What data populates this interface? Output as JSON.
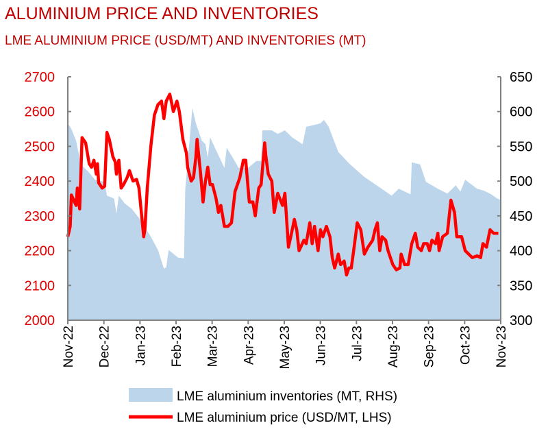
{
  "chart_data": {
    "type": "line+area",
    "title": "ALUMINIUM PRICE AND INVENTORIES",
    "subtitle": "LME ALUMINIUM PRICE (USD/MT) AND INVENTORIES (MT)",
    "x_range": [
      "2022-11-01",
      "2023-11-01"
    ],
    "x_tick_labels": [
      "Nov-22",
      "Dec-22",
      "Jan-23",
      "Feb-23",
      "Mar-23",
      "Apr-23",
      "May-23",
      "Jun-23",
      "Jul-23",
      "Aug-23",
      "Sep-23",
      "Oct-23",
      "Nov-23"
    ],
    "y_left": {
      "range": [
        2000,
        2700
      ],
      "ticks": [
        2000,
        2100,
        2200,
        2300,
        2400,
        2500,
        2600,
        2700
      ],
      "color": "#e00000"
    },
    "y_right": {
      "range": [
        300,
        650
      ],
      "ticks": [
        300,
        350,
        400,
        450,
        500,
        550,
        600,
        650
      ]
    },
    "grid": false,
    "legend_position": "bottom",
    "series": [
      {
        "name": "LME aluminium inventories (MT, RHS)",
        "type": "area",
        "axis": "right",
        "color": "#bdd5ea",
        "points": [
          [
            "2022-11-01",
            583
          ],
          [
            "2022-11-04",
            575
          ],
          [
            "2022-11-08",
            558
          ],
          [
            "2022-11-12",
            524
          ],
          [
            "2022-11-18",
            514
          ],
          [
            "2022-11-24",
            502
          ],
          [
            "2022-12-02",
            499
          ],
          [
            "2022-12-04",
            479
          ],
          [
            "2022-12-10",
            475
          ],
          [
            "2022-12-12",
            453
          ],
          [
            "2022-12-14",
            479
          ],
          [
            "2022-12-19",
            468
          ],
          [
            "2022-12-25",
            460
          ],
          [
            "2022-12-31",
            447
          ],
          [
            "2023-01-10",
            420
          ],
          [
            "2023-01-16",
            401
          ],
          [
            "2023-01-21",
            374
          ],
          [
            "2023-01-23",
            376
          ],
          [
            "2023-01-25",
            401
          ],
          [
            "2023-02-02",
            390
          ],
          [
            "2023-02-07",
            389
          ],
          [
            "2023-02-08",
            487
          ],
          [
            "2023-02-14",
            605
          ],
          [
            "2023-02-17",
            583
          ],
          [
            "2023-02-22",
            558
          ],
          [
            "2023-02-25",
            553
          ],
          [
            "2023-02-27",
            534
          ],
          [
            "2023-03-01",
            563
          ],
          [
            "2023-03-05",
            548
          ],
          [
            "2023-03-09",
            534
          ],
          [
            "2023-03-13",
            519
          ],
          [
            "2023-03-15",
            548
          ],
          [
            "2023-03-20",
            534
          ],
          [
            "2023-03-25",
            519
          ],
          [
            "2023-04-02",
            519
          ],
          [
            "2023-04-09",
            529
          ],
          [
            "2023-04-13",
            529
          ],
          [
            "2023-04-14",
            573
          ],
          [
            "2023-04-22",
            573
          ],
          [
            "2023-04-27",
            568
          ],
          [
            "2023-05-03",
            573
          ],
          [
            "2023-05-09",
            563
          ],
          [
            "2023-05-18",
            553
          ],
          [
            "2023-05-21",
            578
          ],
          [
            "2023-06-02",
            583
          ],
          [
            "2023-06-05",
            588
          ],
          [
            "2023-06-09",
            578
          ],
          [
            "2023-06-17",
            542
          ],
          [
            "2023-06-27",
            524
          ],
          [
            "2023-07-09",
            506
          ],
          [
            "2023-07-21",
            492
          ],
          [
            "2023-08-01",
            479
          ],
          [
            "2023-08-07",
            489
          ],
          [
            "2023-08-17",
            481
          ],
          [
            "2023-08-18",
            527
          ],
          [
            "2023-08-25",
            524
          ],
          [
            "2023-08-30",
            499
          ],
          [
            "2023-09-09",
            489
          ],
          [
            "2023-09-17",
            482
          ],
          [
            "2023-09-20",
            487
          ],
          [
            "2023-09-24",
            494
          ],
          [
            "2023-09-28",
            485
          ],
          [
            "2023-10-02",
            502
          ],
          [
            "2023-10-12",
            489
          ],
          [
            "2023-10-18",
            486
          ],
          [
            "2023-10-24",
            481
          ],
          [
            "2023-10-29",
            475
          ],
          [
            "2023-11-01",
            473
          ]
        ]
      },
      {
        "name": "LME aluminium price (USD/MT, LHS)",
        "type": "line",
        "axis": "left",
        "color": "#ff0000",
        "points": [
          [
            "2022-11-01",
            2240
          ],
          [
            "2022-11-03",
            2270
          ],
          [
            "2022-11-04",
            2360
          ],
          [
            "2022-11-08",
            2330
          ],
          [
            "2022-11-09",
            2380
          ],
          [
            "2022-11-11",
            2320
          ],
          [
            "2022-11-13",
            2525
          ],
          [
            "2022-11-16",
            2510
          ],
          [
            "2022-11-19",
            2450
          ],
          [
            "2022-11-21",
            2440
          ],
          [
            "2022-11-23",
            2460
          ],
          [
            "2022-11-25",
            2420
          ],
          [
            "2022-11-26",
            2450
          ],
          [
            "2022-11-27",
            2395
          ],
          [
            "2022-11-30",
            2380
          ],
          [
            "2022-12-02",
            2385
          ],
          [
            "2022-12-03",
            2460
          ],
          [
            "2022-12-04",
            2540
          ],
          [
            "2022-12-06",
            2520
          ],
          [
            "2022-12-09",
            2470
          ],
          [
            "2022-12-11",
            2455
          ],
          [
            "2022-12-12",
            2420
          ],
          [
            "2022-12-14",
            2460
          ],
          [
            "2022-12-16",
            2380
          ],
          [
            "2022-12-18",
            2390
          ],
          [
            "2022-12-21",
            2410
          ],
          [
            "2022-12-23",
            2430
          ],
          [
            "2022-12-26",
            2400
          ],
          [
            "2022-12-29",
            2405
          ],
          [
            "2022-12-31",
            2380
          ],
          [
            "2023-01-04",
            2240
          ],
          [
            "2023-01-05",
            2260
          ],
          [
            "2023-01-07",
            2380
          ],
          [
            "2023-01-10",
            2500
          ],
          [
            "2023-01-13",
            2590
          ],
          [
            "2023-01-16",
            2620
          ],
          [
            "2023-01-19",
            2630
          ],
          [
            "2023-01-21",
            2580
          ],
          [
            "2023-01-23",
            2630
          ],
          [
            "2023-01-26",
            2650
          ],
          [
            "2023-01-29",
            2600
          ],
          [
            "2023-02-01",
            2630
          ],
          [
            "2023-02-03",
            2600
          ],
          [
            "2023-02-06",
            2520
          ],
          [
            "2023-02-09",
            2480
          ],
          [
            "2023-02-10",
            2440
          ],
          [
            "2023-02-13",
            2400
          ],
          [
            "2023-02-15",
            2410
          ],
          [
            "2023-02-17",
            2470
          ],
          [
            "2023-02-18",
            2520
          ],
          [
            "2023-02-21",
            2420
          ],
          [
            "2023-02-23",
            2340
          ],
          [
            "2023-02-25",
            2400
          ],
          [
            "2023-02-27",
            2440
          ],
          [
            "2023-03-01",
            2390
          ],
          [
            "2023-03-03",
            2390
          ],
          [
            "2023-03-06",
            2350
          ],
          [
            "2023-03-08",
            2310
          ],
          [
            "2023-03-10",
            2330
          ],
          [
            "2023-03-13",
            2270
          ],
          [
            "2023-03-16",
            2270
          ],
          [
            "2023-03-19",
            2280
          ],
          [
            "2023-03-22",
            2370
          ],
          [
            "2023-03-26",
            2410
          ],
          [
            "2023-03-29",
            2460
          ],
          [
            "2023-03-31",
            2460
          ],
          [
            "2023-04-03",
            2340
          ],
          [
            "2023-04-06",
            2340
          ],
          [
            "2023-04-08",
            2300
          ],
          [
            "2023-04-11",
            2380
          ],
          [
            "2023-04-13",
            2390
          ],
          [
            "2023-04-16",
            2510
          ],
          [
            "2023-04-17",
            2470
          ],
          [
            "2023-04-19",
            2420
          ],
          [
            "2023-04-22",
            2400
          ],
          [
            "2023-04-24",
            2310
          ],
          [
            "2023-04-27",
            2365
          ],
          [
            "2023-05-01",
            2330
          ],
          [
            "2023-05-03",
            2365
          ],
          [
            "2023-05-06",
            2210
          ],
          [
            "2023-05-08",
            2240
          ],
          [
            "2023-05-11",
            2290
          ],
          [
            "2023-05-13",
            2260
          ],
          [
            "2023-05-15",
            2200
          ],
          [
            "2023-05-19",
            2230
          ],
          [
            "2023-05-21",
            2220
          ],
          [
            "2023-05-24",
            2280
          ],
          [
            "2023-05-26",
            2220
          ],
          [
            "2023-05-28",
            2270
          ],
          [
            "2023-05-31",
            2200
          ],
          [
            "2023-06-02",
            2260
          ],
          [
            "2023-06-04",
            2240
          ],
          [
            "2023-06-07",
            2270
          ],
          [
            "2023-06-10",
            2240
          ],
          [
            "2023-06-12",
            2180
          ],
          [
            "2023-06-14",
            2150
          ],
          [
            "2023-06-17",
            2190
          ],
          [
            "2023-06-19",
            2160
          ],
          [
            "2023-06-22",
            2170
          ],
          [
            "2023-06-24",
            2130
          ],
          [
            "2023-06-26",
            2150
          ],
          [
            "2023-06-28",
            2150
          ],
          [
            "2023-06-30",
            2200
          ],
          [
            "2023-07-03",
            2280
          ],
          [
            "2023-07-06",
            2260
          ],
          [
            "2023-07-09",
            2190
          ],
          [
            "2023-07-12",
            2210
          ],
          [
            "2023-07-16",
            2230
          ],
          [
            "2023-07-18",
            2260
          ],
          [
            "2023-07-20",
            2280
          ],
          [
            "2023-07-22",
            2200
          ],
          [
            "2023-07-24",
            2240
          ],
          [
            "2023-07-27",
            2230
          ],
          [
            "2023-07-29",
            2200
          ],
          [
            "2023-08-02",
            2160
          ],
          [
            "2023-08-05",
            2145
          ],
          [
            "2023-08-08",
            2150
          ],
          [
            "2023-08-09",
            2190
          ],
          [
            "2023-08-12",
            2160
          ],
          [
            "2023-08-15",
            2160
          ],
          [
            "2023-08-18",
            2220
          ],
          [
            "2023-08-21",
            2250
          ],
          [
            "2023-08-23",
            2210
          ],
          [
            "2023-08-26",
            2200
          ],
          [
            "2023-08-28",
            2220
          ],
          [
            "2023-08-31",
            2220
          ],
          [
            "2023-09-02",
            2200
          ],
          [
            "2023-09-04",
            2230
          ],
          [
            "2023-09-07",
            2220
          ],
          [
            "2023-09-09",
            2250
          ],
          [
            "2023-09-10",
            2200
          ],
          [
            "2023-09-13",
            2240
          ],
          [
            "2023-09-17",
            2250
          ],
          [
            "2023-09-20",
            2345
          ],
          [
            "2023-09-23",
            2310
          ],
          [
            "2023-09-25",
            2240
          ],
          [
            "2023-09-29",
            2240
          ],
          [
            "2023-10-02",
            2200
          ],
          [
            "2023-10-05",
            2190
          ],
          [
            "2023-10-08",
            2180
          ],
          [
            "2023-10-12",
            2185
          ],
          [
            "2023-10-15",
            2180
          ],
          [
            "2023-10-17",
            2220
          ],
          [
            "2023-10-20",
            2210
          ],
          [
            "2023-10-23",
            2260
          ],
          [
            "2023-10-26",
            2250
          ],
          [
            "2023-10-30",
            2250
          ]
        ]
      }
    ]
  }
}
